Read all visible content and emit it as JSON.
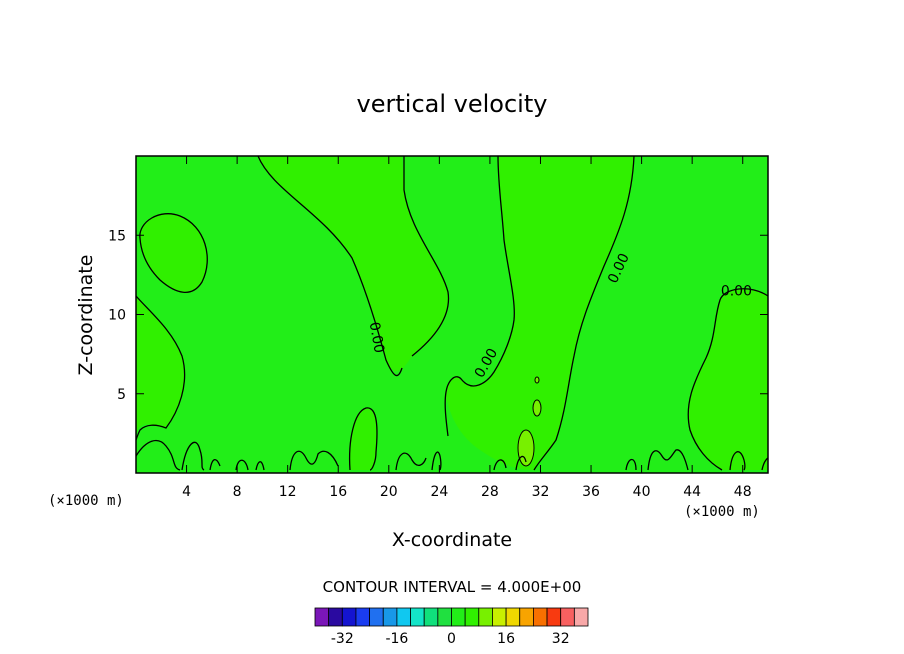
{
  "chart_data": {
    "type": "contour",
    "title": "vertical velocity",
    "xlabel": "X-coordinate",
    "ylabel": "Z-coordinate",
    "x_unit": "(×1000 m)",
    "y_unit": "(×1000 m)",
    "xlim": [
      0,
      50
    ],
    "ylim": [
      0,
      20
    ],
    "x_ticks": [
      4,
      8,
      12,
      16,
      20,
      24,
      28,
      32,
      36,
      40,
      44,
      48
    ],
    "y_ticks": [
      5,
      10,
      15
    ],
    "contour_interval_text": "CONTOUR INTERVAL = 4.000E+00",
    "contour_interval": 4.0,
    "contour_labels": [
      {
        "text": "0.00",
        "x": 18.7,
        "z": 8.5
      },
      {
        "text": "0.00",
        "x": 28.0,
        "z": 6.8
      },
      {
        "text": "0.00",
        "x": 38.5,
        "z": 12.8
      },
      {
        "text": "0.00",
        "x": 47.5,
        "z": 11.2
      }
    ],
    "colorbar": {
      "levels": [
        -40,
        -36,
        -32,
        -28,
        -24,
        -20,
        -16,
        -12,
        -8,
        -4,
        0,
        4,
        8,
        12,
        16,
        20,
        24,
        28,
        32,
        36
      ],
      "tick_labels": [
        "-32",
        "-16",
        "0",
        "16",
        "32"
      ],
      "tick_values": [
        -32,
        -16,
        0,
        16,
        32
      ],
      "colors": [
        "#7a16b8",
        "#2a0aa0",
        "#1414d0",
        "#1a3cf0",
        "#2070f0",
        "#1898e8",
        "#10c8f0",
        "#14e4c8",
        "#10e07c",
        "#20e040",
        "#22ee18",
        "#30f000",
        "#78f000",
        "#c8f000",
        "#f0d800",
        "#f8a400",
        "#f87000",
        "#f83a10",
        "#f86060",
        "#f8a8a8"
      ]
    },
    "fill_colors": {
      "negative": "#22ee18",
      "near_zero": "#30f000",
      "positive": "#78f000"
    }
  }
}
